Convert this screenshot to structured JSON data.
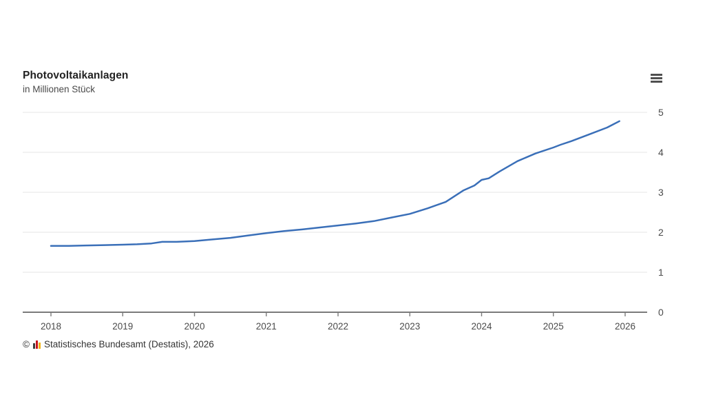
{
  "header": {
    "title": "Photovoltaikanlagen",
    "subtitle": "in Millionen Stück",
    "menu_icon": "hamburger"
  },
  "footer": {
    "copyright": "©",
    "logo_icon": "destatis-bar-chart",
    "source": "Statistisches Bundesamt (Destatis), 2026"
  },
  "chart_data": {
    "type": "line",
    "title": "Photovoltaikanlagen",
    "subtitle": "in Millionen Stück",
    "xlabel": "",
    "ylabel": "in Millionen Stück",
    "unit": "Millionen Stück",
    "xlim": [
      2017.6,
      2026.31
    ],
    "ylim": [
      0,
      5
    ],
    "x_ticks": [
      2018,
      2019,
      2020,
      2021,
      2022,
      2023,
      2024,
      2025,
      2026
    ],
    "y_ticks": [
      0,
      1,
      2,
      3,
      4,
      5
    ],
    "grid": "horizontal",
    "y_axis_side": "right",
    "legend_position": "none",
    "line_color": "#3a6fb8",
    "grid_color": "#ebebeb",
    "axis_color": "#7a7a7a",
    "tick_label_color": "#4a4a4a",
    "series": [
      {
        "name": "Photovoltaikanlagen in Millionen Stück",
        "x": [
          2018.0,
          2018.25,
          2018.5,
          2018.75,
          2019.0,
          2019.2,
          2019.4,
          2019.55,
          2019.75,
          2020.0,
          2020.25,
          2020.5,
          2020.75,
          2021.0,
          2021.25,
          2021.5,
          2021.75,
          2022.0,
          2022.25,
          2022.5,
          2022.75,
          2023.0,
          2023.25,
          2023.5,
          2023.75,
          2023.9,
          2024.0,
          2024.1,
          2024.25,
          2024.5,
          2024.75,
          2025.0,
          2025.1,
          2025.25,
          2025.5,
          2025.75,
          2025.92
        ],
        "values": [
          1.66,
          1.66,
          1.67,
          1.68,
          1.69,
          1.7,
          1.72,
          1.76,
          1.76,
          1.78,
          1.82,
          1.86,
          1.92,
          1.98,
          2.03,
          2.07,
          2.12,
          2.17,
          2.22,
          2.28,
          2.37,
          2.46,
          2.6,
          2.76,
          3.05,
          3.17,
          3.31,
          3.35,
          3.52,
          3.78,
          3.97,
          4.12,
          4.19,
          4.28,
          4.45,
          4.62,
          4.78
        ]
      }
    ]
  }
}
